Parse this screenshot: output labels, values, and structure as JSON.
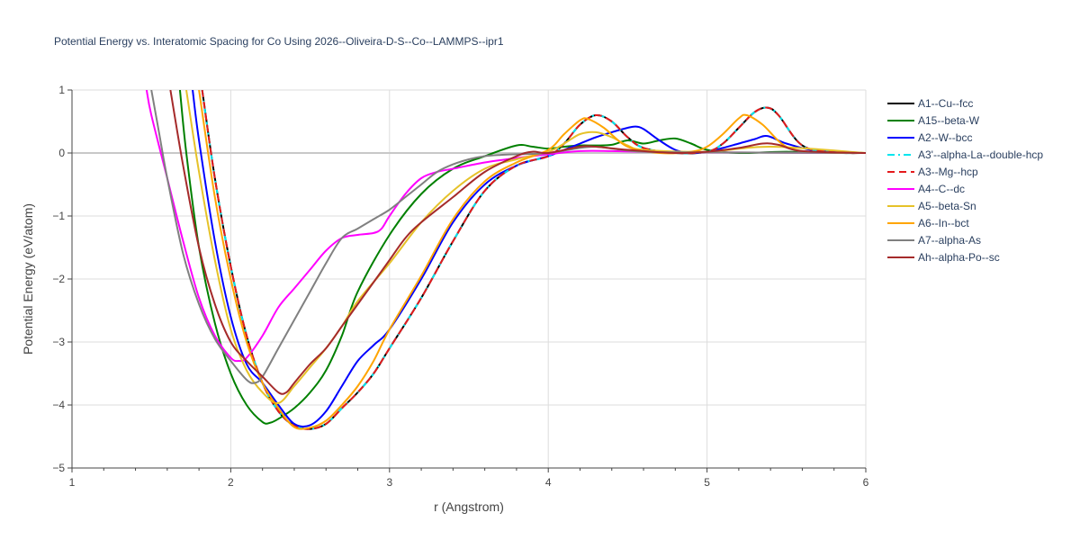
{
  "chart_data": {
    "type": "line",
    "title": "Potential Energy vs. Interatomic Spacing for Co Using 2026--Oliveira-D-S--Co--LAMMPS--ipr1",
    "xlabel": "r (Angstrom)",
    "ylabel": "Potential Energy (eV/atom)",
    "xlim": [
      1,
      6
    ],
    "ylim": [
      -5,
      1
    ],
    "x_ticks": [
      1,
      2,
      3,
      4,
      5,
      6
    ],
    "y_ticks": [
      -5,
      -4,
      -3,
      -2,
      -1,
      0,
      1
    ],
    "x_tick_labels": [
      "1",
      "2",
      "3",
      "4",
      "5",
      "6"
    ],
    "y_tick_labels": [
      "−5",
      "−4",
      "−3",
      "−2",
      "−1",
      "0",
      "1"
    ],
    "grid": true,
    "legend_position": "right",
    "series": [
      {
        "name": "A1--Cu--fcc",
        "color": "#000000",
        "dash": "solid",
        "x": [
          1.82,
          1.9,
          2.0,
          2.1,
          2.2,
          2.3,
          2.4,
          2.5,
          2.6,
          2.7,
          2.8,
          2.9,
          3.0,
          3.2,
          3.4,
          3.6,
          3.8,
          4.0,
          4.1,
          4.2,
          4.3,
          4.4,
          4.5,
          4.6,
          4.8,
          5.0,
          5.1,
          5.2,
          5.3,
          5.38,
          5.45,
          5.6,
          5.8,
          6.0
        ],
        "y": [
          1.0,
          -0.4,
          -1.8,
          -2.9,
          -3.65,
          -4.1,
          -4.33,
          -4.38,
          -4.3,
          -4.05,
          -3.8,
          -3.5,
          -3.1,
          -2.3,
          -1.4,
          -0.6,
          -0.2,
          -0.05,
          0.15,
          0.45,
          0.6,
          0.5,
          0.25,
          0.08,
          0.0,
          0.02,
          0.15,
          0.4,
          0.65,
          0.72,
          0.6,
          0.12,
          0.01,
          0.0
        ]
      },
      {
        "name": "A15--beta-W",
        "color": "#008000",
        "dash": "solid",
        "x": [
          1.68,
          1.72,
          1.8,
          1.9,
          2.0,
          2.1,
          2.2,
          2.25,
          2.3,
          2.4,
          2.5,
          2.6,
          2.7,
          2.8,
          3.0,
          3.2,
          3.4,
          3.6,
          3.8,
          3.9,
          4.0,
          4.1,
          4.2,
          4.3,
          4.4,
          4.5,
          4.6,
          4.7,
          4.8,
          4.9,
          5.0,
          5.2,
          5.5,
          6.0
        ],
        "y": [
          1.0,
          0.0,
          -1.5,
          -2.7,
          -3.5,
          -4.0,
          -4.27,
          -4.28,
          -4.22,
          -4.05,
          -3.8,
          -3.45,
          -2.9,
          -2.2,
          -1.3,
          -0.65,
          -0.25,
          -0.05,
          0.12,
          0.1,
          0.07,
          0.1,
          0.12,
          0.12,
          0.13,
          0.2,
          0.15,
          0.2,
          0.23,
          0.15,
          0.05,
          0.0,
          0.02,
          0.0
        ]
      },
      {
        "name": "A2--W--bcc",
        "color": "#0000ff",
        "dash": "solid",
        "x": [
          1.76,
          1.8,
          1.9,
          2.0,
          2.1,
          2.2,
          2.3,
          2.4,
          2.5,
          2.6,
          2.7,
          2.8,
          2.9,
          3.0,
          3.2,
          3.4,
          3.6,
          3.8,
          4.0,
          4.1,
          4.2,
          4.3,
          4.4,
          4.5,
          4.55,
          4.6,
          4.7,
          4.8,
          4.9,
          5.0,
          5.1,
          5.2,
          5.3,
          5.38,
          5.5,
          5.7,
          6.0
        ],
        "y": [
          1.0,
          0.2,
          -1.4,
          -2.6,
          -3.35,
          -3.65,
          -4.0,
          -4.3,
          -4.32,
          -4.1,
          -3.7,
          -3.3,
          -3.05,
          -2.8,
          -2.0,
          -1.1,
          -0.5,
          -0.2,
          -0.05,
          0.05,
          0.15,
          0.25,
          0.33,
          0.4,
          0.42,
          0.38,
          0.2,
          0.05,
          0.0,
          0.02,
          0.08,
          0.15,
          0.22,
          0.27,
          0.15,
          0.03,
          0.0
        ]
      },
      {
        "name": "A3'--alpha-La--double-hcp",
        "color": "#00e5ee",
        "dash": "dashdot",
        "x": [
          1.82,
          1.9,
          2.0,
          2.1,
          2.2,
          2.3,
          2.4,
          2.5,
          2.6,
          2.7,
          2.8,
          2.9,
          3.0,
          3.2,
          3.4,
          3.6,
          3.8,
          4.0,
          4.1,
          4.2,
          4.3,
          4.4,
          4.5,
          4.6,
          4.8,
          5.0,
          5.1,
          5.2,
          5.3,
          5.38,
          5.45,
          5.6,
          5.8,
          6.0
        ],
        "y": [
          1.0,
          -0.4,
          -1.8,
          -2.9,
          -3.65,
          -4.1,
          -4.33,
          -4.38,
          -4.3,
          -4.05,
          -3.8,
          -3.5,
          -3.1,
          -2.3,
          -1.4,
          -0.6,
          -0.2,
          -0.05,
          0.15,
          0.45,
          0.6,
          0.5,
          0.25,
          0.08,
          0.0,
          0.02,
          0.15,
          0.4,
          0.65,
          0.72,
          0.6,
          0.12,
          0.01,
          0.0
        ]
      },
      {
        "name": "A3--Mg--hcp",
        "color": "#e41a1c",
        "dash": "dash",
        "x": [
          1.82,
          1.9,
          2.0,
          2.1,
          2.2,
          2.3,
          2.4,
          2.5,
          2.6,
          2.7,
          2.8,
          2.9,
          3.0,
          3.2,
          3.4,
          3.6,
          3.8,
          4.0,
          4.1,
          4.2,
          4.3,
          4.4,
          4.5,
          4.6,
          4.8,
          5.0,
          5.1,
          5.2,
          5.3,
          5.38,
          5.45,
          5.6,
          5.8,
          6.0
        ],
        "y": [
          1.0,
          -0.4,
          -1.8,
          -2.9,
          -3.65,
          -4.1,
          -4.33,
          -4.38,
          -4.3,
          -4.05,
          -3.8,
          -3.5,
          -3.1,
          -2.3,
          -1.4,
          -0.6,
          -0.2,
          -0.05,
          0.15,
          0.45,
          0.6,
          0.5,
          0.25,
          0.08,
          0.0,
          0.02,
          0.15,
          0.4,
          0.65,
          0.72,
          0.6,
          0.12,
          0.01,
          0.0
        ]
      },
      {
        "name": "A4--C--dc",
        "color": "#ff00ff",
        "dash": "solid",
        "x": [
          1.47,
          1.5,
          1.6,
          1.7,
          1.8,
          1.9,
          2.0,
          2.05,
          2.1,
          2.2,
          2.3,
          2.4,
          2.5,
          2.6,
          2.7,
          2.8,
          2.9,
          2.95,
          3.0,
          3.1,
          3.2,
          3.3,
          3.4,
          3.6,
          3.8,
          4.0,
          4.2,
          4.4,
          4.6,
          5.0,
          6.0
        ],
        "y": [
          1.0,
          0.6,
          -0.4,
          -1.4,
          -2.3,
          -2.9,
          -3.25,
          -3.3,
          -3.25,
          -2.9,
          -2.45,
          -2.15,
          -1.85,
          -1.55,
          -1.35,
          -1.3,
          -1.27,
          -1.2,
          -1.0,
          -0.65,
          -0.4,
          -0.3,
          -0.25,
          -0.15,
          -0.08,
          -0.02,
          0.03,
          0.03,
          0.02,
          0.01,
          0.0
        ]
      },
      {
        "name": "A5--beta-Sn",
        "color": "#e6c229",
        "dash": "solid",
        "x": [
          1.72,
          1.8,
          1.9,
          2.0,
          2.1,
          2.2,
          2.3,
          2.4,
          2.5,
          2.6,
          2.7,
          2.8,
          3.0,
          3.2,
          3.4,
          3.6,
          3.8,
          4.0,
          4.1,
          4.2,
          4.3,
          4.4,
          4.5,
          4.6,
          5.0,
          5.4,
          6.0
        ],
        "y": [
          1.0,
          -0.3,
          -1.7,
          -2.8,
          -3.45,
          -3.8,
          -3.97,
          -3.7,
          -3.4,
          -3.1,
          -2.75,
          -2.35,
          -1.75,
          -1.1,
          -0.6,
          -0.25,
          -0.1,
          0.02,
          0.15,
          0.3,
          0.33,
          0.25,
          0.12,
          0.05,
          0.02,
          0.1,
          0.0
        ]
      },
      {
        "name": "A6--In--bct",
        "color": "#ffa500",
        "dash": "solid",
        "x": [
          1.8,
          1.9,
          2.0,
          2.1,
          2.2,
          2.3,
          2.4,
          2.5,
          2.6,
          2.7,
          2.8,
          2.9,
          3.0,
          3.2,
          3.4,
          3.6,
          3.8,
          4.0,
          4.1,
          4.2,
          4.25,
          4.35,
          4.5,
          4.7,
          4.9,
          5.0,
          5.1,
          5.2,
          5.25,
          5.35,
          5.5,
          5.7,
          6.0
        ],
        "y": [
          1.0,
          -0.7,
          -2.0,
          -3.0,
          -3.65,
          -4.05,
          -4.35,
          -4.36,
          -4.25,
          -4.0,
          -3.7,
          -3.3,
          -2.8,
          -1.95,
          -1.05,
          -0.45,
          -0.15,
          0.05,
          0.3,
          0.52,
          0.54,
          0.4,
          0.1,
          0.0,
          0.02,
          0.1,
          0.3,
          0.55,
          0.6,
          0.45,
          0.1,
          0.01,
          0.0
        ]
      },
      {
        "name": "A7--alpha-As",
        "color": "#808080",
        "dash": "solid",
        "x": [
          1.5,
          1.55,
          1.6,
          1.7,
          1.8,
          1.9,
          2.0,
          2.1,
          2.15,
          2.2,
          2.3,
          2.4,
          2.5,
          2.6,
          2.7,
          2.8,
          2.9,
          3.0,
          3.1,
          3.2,
          3.3,
          3.4,
          3.5,
          3.6,
          3.7,
          3.8,
          4.0,
          4.2,
          4.3,
          4.4,
          4.6,
          5.0,
          6.0
        ],
        "y": [
          1.0,
          0.3,
          -0.4,
          -1.6,
          -2.4,
          -2.95,
          -3.3,
          -3.6,
          -3.65,
          -3.55,
          -3.1,
          -2.65,
          -2.2,
          -1.75,
          -1.35,
          -1.2,
          -1.05,
          -0.9,
          -0.7,
          -0.5,
          -0.3,
          -0.18,
          -0.1,
          -0.05,
          -0.03,
          -0.02,
          0.0,
          0.08,
          0.1,
          0.07,
          0.02,
          0.01,
          0.0
        ]
      },
      {
        "name": "Ah--alpha-Po--sc",
        "color": "#a52a2a",
        "dash": "solid",
        "x": [
          1.62,
          1.7,
          1.8,
          1.9,
          2.0,
          2.1,
          2.2,
          2.3,
          2.35,
          2.4,
          2.5,
          2.6,
          2.7,
          2.8,
          2.9,
          3.0,
          3.1,
          3.2,
          3.4,
          3.6,
          3.8,
          3.9,
          4.0,
          4.2,
          4.3,
          4.5,
          4.8,
          5.0,
          5.2,
          5.35,
          5.45,
          5.6,
          6.0
        ],
        "y": [
          1.0,
          -0.2,
          -1.5,
          -2.4,
          -3.0,
          -3.3,
          -3.55,
          -3.8,
          -3.8,
          -3.65,
          -3.35,
          -3.1,
          -2.75,
          -2.4,
          -2.05,
          -1.7,
          -1.35,
          -1.1,
          -0.7,
          -0.3,
          -0.05,
          0.02,
          0.0,
          0.1,
          0.1,
          0.05,
          0.0,
          0.02,
          0.08,
          0.15,
          0.13,
          0.03,
          0.0
        ]
      }
    ]
  }
}
